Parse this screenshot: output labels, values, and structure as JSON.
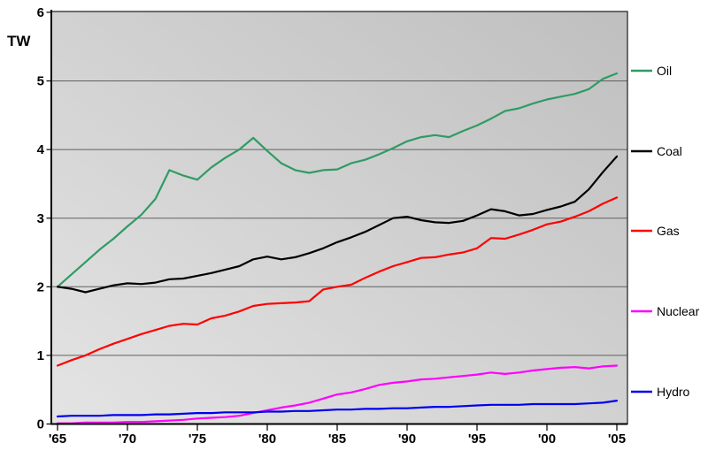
{
  "chart_data": {
    "type": "line",
    "title": "",
    "ylabel": "TW",
    "xlabel": "",
    "ylim": [
      0,
      6
    ],
    "xlim": [
      1965,
      2005
    ],
    "grid": "horizontal",
    "legend_position": "right",
    "plot_bg_gradient": [
      "#bfbfbf",
      "#e4e4e4"
    ],
    "y_ticks": [
      "0",
      "1",
      "2",
      "3",
      "4",
      "5",
      "6"
    ],
    "x_tick_labels": [
      "'65",
      "'70",
      "'75",
      "'80",
      "'85",
      "'90",
      "'95",
      "'00",
      "'05"
    ],
    "years": [
      1965,
      1966,
      1967,
      1968,
      1969,
      1970,
      1971,
      1972,
      1973,
      1974,
      1975,
      1976,
      1977,
      1978,
      1979,
      1980,
      1981,
      1982,
      1983,
      1984,
      1985,
      1986,
      1987,
      1988,
      1989,
      1990,
      1991,
      1992,
      1993,
      1994,
      1995,
      1996,
      1997,
      1998,
      1999,
      2000,
      2001,
      2002,
      2003,
      2004,
      2005
    ],
    "series": [
      {
        "name": "Oil",
        "color": "#2f9b65",
        "values": [
          2.0,
          2.18,
          2.36,
          2.54,
          2.7,
          2.88,
          3.05,
          3.28,
          3.7,
          3.62,
          3.56,
          3.74,
          3.88,
          4.0,
          4.17,
          3.98,
          3.8,
          3.7,
          3.66,
          3.7,
          3.71,
          3.8,
          3.85,
          3.93,
          4.02,
          4.12,
          4.18,
          4.21,
          4.18,
          4.27,
          4.35,
          4.45,
          4.56,
          4.6,
          4.67,
          4.73,
          4.77,
          4.81,
          4.88,
          5.03,
          5.11
        ]
      },
      {
        "name": "Coal",
        "color": "#000000",
        "values": [
          2.0,
          1.97,
          1.92,
          1.97,
          2.02,
          2.05,
          2.04,
          2.06,
          2.11,
          2.12,
          2.16,
          2.2,
          2.25,
          2.3,
          2.4,
          2.44,
          2.4,
          2.43,
          2.49,
          2.56,
          2.65,
          2.72,
          2.8,
          2.9,
          3.0,
          3.02,
          2.97,
          2.94,
          2.93,
          2.96,
          3.04,
          3.13,
          3.1,
          3.04,
          3.06,
          3.12,
          3.17,
          3.24,
          3.42,
          3.67,
          3.9
        ]
      },
      {
        "name": "Gas",
        "color": "#ff0000",
        "values": [
          0.85,
          0.93,
          1.0,
          1.09,
          1.17,
          1.24,
          1.31,
          1.37,
          1.43,
          1.46,
          1.45,
          1.54,
          1.58,
          1.64,
          1.72,
          1.75,
          1.76,
          1.77,
          1.79,
          1.96,
          2.0,
          2.03,
          2.13,
          2.22,
          2.3,
          2.36,
          2.42,
          2.43,
          2.47,
          2.5,
          2.56,
          2.71,
          2.7,
          2.76,
          2.83,
          2.91,
          2.95,
          3.02,
          3.1,
          3.21,
          3.3
        ]
      },
      {
        "name": "Nuclear",
        "color": "#ff00ff",
        "values": [
          0.01,
          0.01,
          0.02,
          0.02,
          0.02,
          0.03,
          0.03,
          0.04,
          0.05,
          0.06,
          0.08,
          0.09,
          0.1,
          0.12,
          0.16,
          0.2,
          0.24,
          0.27,
          0.31,
          0.37,
          0.43,
          0.46,
          0.51,
          0.57,
          0.6,
          0.62,
          0.65,
          0.66,
          0.68,
          0.7,
          0.72,
          0.75,
          0.73,
          0.75,
          0.78,
          0.8,
          0.82,
          0.83,
          0.81,
          0.84,
          0.85
        ]
      },
      {
        "name": "Hydro",
        "color": "#0000ee",
        "values": [
          0.11,
          0.12,
          0.12,
          0.12,
          0.13,
          0.13,
          0.13,
          0.14,
          0.14,
          0.15,
          0.16,
          0.16,
          0.17,
          0.17,
          0.17,
          0.18,
          0.18,
          0.19,
          0.19,
          0.2,
          0.21,
          0.21,
          0.22,
          0.22,
          0.23,
          0.23,
          0.24,
          0.25,
          0.25,
          0.26,
          0.27,
          0.28,
          0.28,
          0.28,
          0.29,
          0.29,
          0.29,
          0.29,
          0.3,
          0.31,
          0.34
        ]
      }
    ]
  }
}
